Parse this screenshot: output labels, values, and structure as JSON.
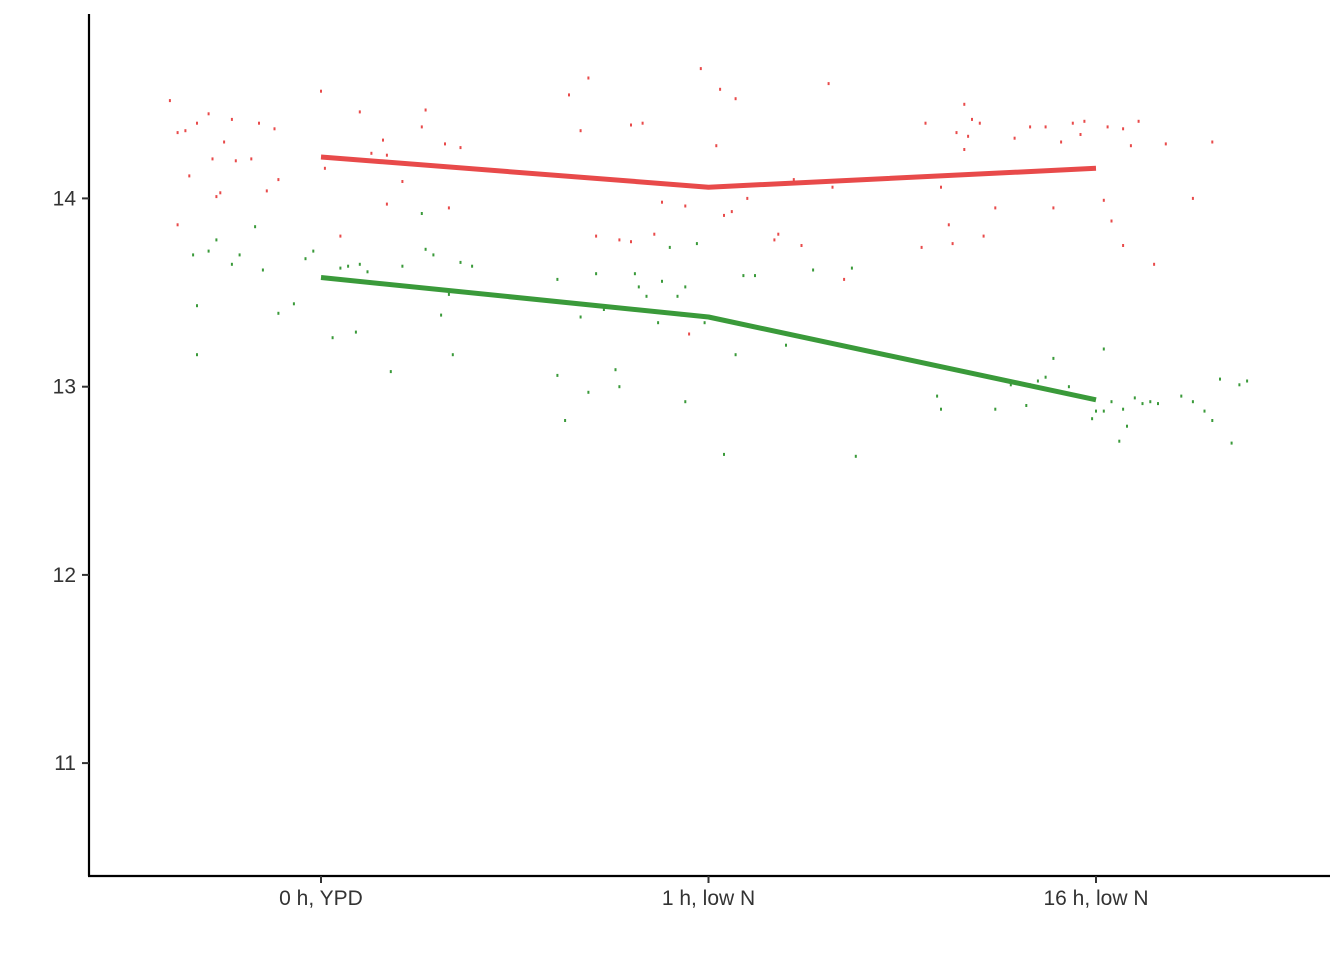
{
  "chart_data": {
    "type": "line",
    "title": "",
    "xlabel": "",
    "ylabel": "",
    "categories": [
      "0 h, YPD",
      "1 h, low N",
      "16 h, low N"
    ],
    "ylim": [
      10.4,
      14.98
    ],
    "yticks": [
      11,
      12,
      13,
      14
    ],
    "grid": false,
    "legend": "none",
    "colors": [
      "#e84a4a",
      "#3a9a3a"
    ],
    "series": [
      {
        "values": [
          14.22,
          14.06,
          14.16
        ],
        "points": [
          [
            -0.39,
            14.52
          ],
          [
            -0.37,
            14.35
          ],
          [
            -0.35,
            14.36
          ],
          [
            -0.34,
            14.12
          ],
          [
            -0.32,
            14.4
          ],
          [
            -0.29,
            14.45
          ],
          [
            -0.27,
            14.01
          ],
          [
            -0.25,
            14.3
          ],
          [
            -0.23,
            14.42
          ],
          [
            -0.22,
            14.2
          ],
          [
            -0.18,
            14.21
          ],
          [
            -0.16,
            14.4
          ],
          [
            -0.14,
            14.04
          ],
          [
            -0.12,
            14.37
          ],
          [
            -0.11,
            14.1
          ],
          [
            -0.37,
            13.86
          ],
          [
            -0.28,
            14.21
          ],
          [
            -0.26,
            14.03
          ],
          [
            0.0,
            14.57
          ],
          [
            0.01,
            14.16
          ],
          [
            0.05,
            13.8
          ],
          [
            0.1,
            14.46
          ],
          [
            0.13,
            14.24
          ],
          [
            0.16,
            14.31
          ],
          [
            0.17,
            13.97
          ],
          [
            0.21,
            14.09
          ],
          [
            0.26,
            14.38
          ],
          [
            0.27,
            14.47
          ],
          [
            0.32,
            14.29
          ],
          [
            0.36,
            14.27
          ],
          [
            0.33,
            13.95
          ],
          [
            0.17,
            14.23
          ],
          [
            0.64,
            14.55
          ],
          [
            0.69,
            14.64
          ],
          [
            0.71,
            13.8
          ],
          [
            0.77,
            13.78
          ],
          [
            0.8,
            13.77
          ],
          [
            0.8,
            14.39
          ],
          [
            0.83,
            14.4
          ],
          [
            0.86,
            13.81
          ],
          [
            0.88,
            13.98
          ],
          [
            0.94,
            13.96
          ],
          [
            0.95,
            13.28
          ],
          [
            0.98,
            14.69
          ],
          [
            1.03,
            14.58
          ],
          [
            1.02,
            14.28
          ],
          [
            1.04,
            13.91
          ],
          [
            1.06,
            13.93
          ],
          [
            1.07,
            14.53
          ],
          [
            1.17,
            13.78
          ],
          [
            1.18,
            13.81
          ],
          [
            1.24,
            13.75
          ],
          [
            1.31,
            14.61
          ],
          [
            1.32,
            14.06
          ],
          [
            1.35,
            13.57
          ],
          [
            1.1,
            14.0
          ],
          [
            1.22,
            14.1
          ],
          [
            0.67,
            14.36
          ],
          [
            1.56,
            14.4
          ],
          [
            1.6,
            14.06
          ],
          [
            1.62,
            13.86
          ],
          [
            1.63,
            13.76
          ],
          [
            1.64,
            14.35
          ],
          [
            1.66,
            14.5
          ],
          [
            1.66,
            14.26
          ],
          [
            1.67,
            14.33
          ],
          [
            1.68,
            14.42
          ],
          [
            1.7,
            14.4
          ],
          [
            1.74,
            13.95
          ],
          [
            1.79,
            14.32
          ],
          [
            1.83,
            14.38
          ],
          [
            1.87,
            14.38
          ],
          [
            1.89,
            13.95
          ],
          [
            1.91,
            14.3
          ],
          [
            1.94,
            14.4
          ],
          [
            1.96,
            14.34
          ],
          [
            1.97,
            14.41
          ],
          [
            2.03,
            14.38
          ],
          [
            2.07,
            14.37
          ],
          [
            2.09,
            14.28
          ],
          [
            2.11,
            14.41
          ],
          [
            2.15,
            13.65
          ],
          [
            2.18,
            14.29
          ],
          [
            2.3,
            14.3
          ],
          [
            2.07,
            13.75
          ],
          [
            1.55,
            13.74
          ],
          [
            1.71,
            13.8
          ],
          [
            2.04,
            13.88
          ],
          [
            2.02,
            13.99
          ],
          [
            2.25,
            14.0
          ]
        ]
      },
      {
        "values": [
          13.58,
          13.37,
          12.93
        ],
        "points": [
          [
            -0.33,
            13.7
          ],
          [
            -0.32,
            13.43
          ],
          [
            -0.32,
            13.17
          ],
          [
            -0.29,
            13.72
          ],
          [
            -0.27,
            13.78
          ],
          [
            -0.23,
            13.65
          ],
          [
            -0.21,
            13.7
          ],
          [
            -0.17,
            13.85
          ],
          [
            -0.15,
            13.62
          ],
          [
            -0.11,
            13.39
          ],
          [
            -0.07,
            13.44
          ],
          [
            -0.04,
            13.68
          ],
          [
            -0.02,
            13.72
          ],
          [
            0.03,
            13.26
          ],
          [
            0.05,
            13.63
          ],
          [
            0.07,
            13.64
          ],
          [
            0.09,
            13.29
          ],
          [
            0.1,
            13.65
          ],
          [
            0.12,
            13.61
          ],
          [
            0.18,
            13.08
          ],
          [
            0.21,
            13.64
          ],
          [
            0.26,
            13.92
          ],
          [
            0.27,
            13.73
          ],
          [
            0.29,
            13.7
          ],
          [
            0.31,
            13.38
          ],
          [
            0.33,
            13.49
          ],
          [
            0.34,
            13.17
          ],
          [
            0.36,
            13.66
          ],
          [
            0.39,
            13.64
          ],
          [
            0.61,
            13.06
          ],
          [
            0.61,
            13.57
          ],
          [
            0.63,
            12.82
          ],
          [
            0.67,
            13.37
          ],
          [
            0.69,
            12.97
          ],
          [
            0.71,
            13.6
          ],
          [
            0.73,
            13.41
          ],
          [
            0.76,
            13.09
          ],
          [
            0.77,
            13.0
          ],
          [
            0.81,
            13.6
          ],
          [
            0.82,
            13.53
          ],
          [
            0.84,
            13.48
          ],
          [
            0.87,
            13.34
          ],
          [
            0.88,
            13.56
          ],
          [
            0.9,
            13.74
          ],
          [
            0.92,
            13.48
          ],
          [
            0.93,
            13.38
          ],
          [
            0.94,
            13.53
          ],
          [
            0.97,
            13.76
          ],
          [
            0.99,
            13.34
          ],
          [
            0.94,
            12.92
          ],
          [
            1.09,
            13.59
          ],
          [
            1.12,
            13.59
          ],
          [
            1.2,
            13.22
          ],
          [
            1.27,
            13.62
          ],
          [
            1.37,
            13.63
          ],
          [
            1.38,
            12.63
          ],
          [
            1.04,
            12.64
          ],
          [
            1.07,
            13.17
          ],
          [
            1.59,
            12.95
          ],
          [
            1.6,
            12.88
          ],
          [
            1.74,
            12.88
          ],
          [
            1.78,
            13.01
          ],
          [
            1.82,
            12.9
          ],
          [
            1.83,
            13.01
          ],
          [
            1.85,
            13.03
          ],
          [
            1.87,
            13.05
          ],
          [
            1.89,
            13.15
          ],
          [
            1.93,
            13.0
          ],
          [
            1.99,
            12.83
          ],
          [
            2.0,
            12.87
          ],
          [
            2.02,
            12.87
          ],
          [
            2.04,
            12.92
          ],
          [
            2.07,
            12.88
          ],
          [
            2.08,
            12.79
          ],
          [
            2.1,
            12.94
          ],
          [
            2.12,
            12.91
          ],
          [
            2.14,
            12.92
          ],
          [
            2.16,
            12.91
          ],
          [
            2.22,
            12.95
          ],
          [
            2.28,
            12.87
          ],
          [
            2.3,
            12.82
          ],
          [
            2.32,
            13.04
          ],
          [
            2.35,
            12.7
          ],
          [
            2.37,
            13.01
          ],
          [
            2.39,
            13.03
          ],
          [
            2.02,
            13.2
          ],
          [
            2.06,
            12.71
          ],
          [
            2.25,
            12.92
          ]
        ]
      }
    ]
  }
}
